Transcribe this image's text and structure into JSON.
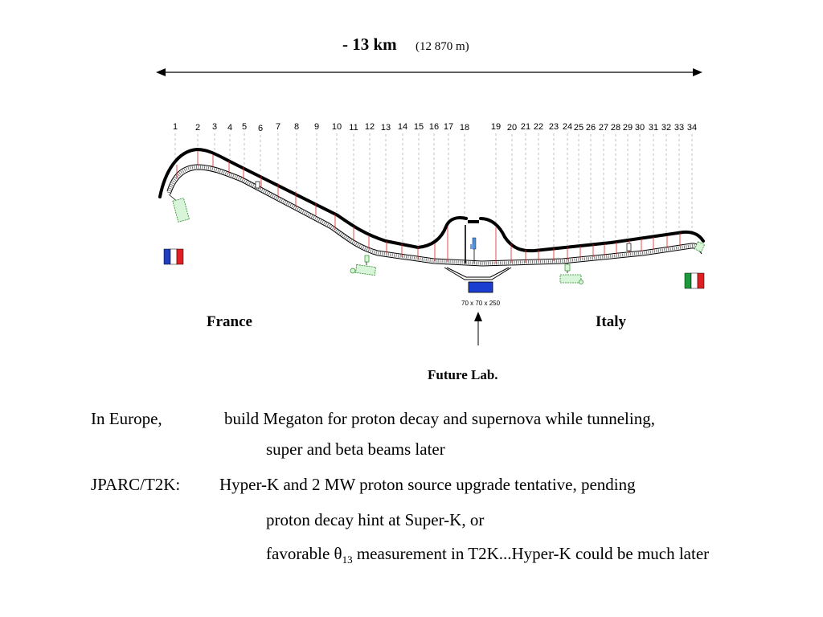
{
  "scale": {
    "distance": "-  13 km",
    "distance_detail": "(12 870 m)"
  },
  "km_markers": [
    "1",
    "2",
    "3",
    "4",
    "5",
    "6",
    "7",
    "8",
    "9",
    "10",
    "11",
    "12",
    "13",
    "14",
    "15",
    "16",
    "17",
    "18",
    "19",
    "20",
    "21",
    "22",
    "23",
    "24",
    "25",
    "26",
    "27",
    "28",
    "29",
    "30",
    "31",
    "32",
    "33",
    "34"
  ],
  "countries": {
    "left": "France",
    "right": "Italy"
  },
  "flag_colors": {
    "france": [
      "#1f3fbf",
      "#ffffff",
      "#e02020"
    ],
    "italy": [
      "#1a9a3a",
      "#ffffff",
      "#e02020"
    ]
  },
  "lab": {
    "label": "Future Lab.",
    "dimensions": "70 x 70 x 250"
  },
  "notes": {
    "europe_label": "In Europe,",
    "europe_line1": "build Megaton for proton decay and supernova while tunneling,",
    "europe_line2": "super and beta beams later",
    "jparc_label": "JPARC/T2K:",
    "jparc_line1": "Hyper-K and 2 MW proton source upgrade tentative, pending",
    "jparc_line2": "proton decay hint at Super-K, or",
    "jparc_line3_pre": "favorable θ",
    "jparc_line3_sub": "13",
    "jparc_line3_post": " measurement in T2K...Hyper-K could be much later"
  }
}
